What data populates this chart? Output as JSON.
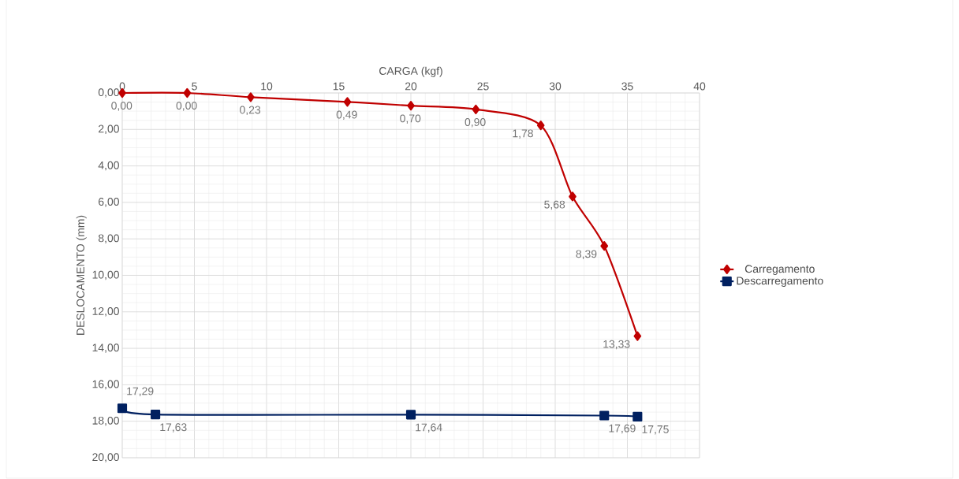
{
  "chart_data": {
    "type": "line",
    "xlabel": "CARGA (kgf)",
    "ylabel": "DESLOCAMENTO (mm)",
    "xlim": [
      0,
      40
    ],
    "xticks": [
      0,
      5,
      10,
      15,
      20,
      25,
      30,
      35,
      40
    ],
    "ylim": [
      20,
      0
    ],
    "yticks": [
      {
        "value": 0,
        "label": "0,00"
      },
      {
        "value": 2,
        "label": "2,00"
      },
      {
        "value": 4,
        "label": "4,00"
      },
      {
        "value": 6,
        "label": "6,00"
      },
      {
        "value": 8,
        "label": "8,00"
      },
      {
        "value": 10,
        "label": "10,00"
      },
      {
        "value": 12,
        "label": "12,00"
      },
      {
        "value": 14,
        "label": "14,00"
      },
      {
        "value": 16,
        "label": "16,00"
      },
      {
        "value": 18,
        "label": "18,00"
      },
      {
        "value": 20,
        "label": "20,00"
      }
    ],
    "grid": true,
    "legend": "right",
    "series": [
      {
        "name": "Carregamento",
        "color": "#c00000",
        "marker": "diamond",
        "x": [
          0,
          4.5,
          8.9,
          15.6,
          20.0,
          24.5,
          29.0,
          31.2,
          33.4,
          35.7
        ],
        "values": [
          0,
          0,
          0.23,
          0.49,
          0.7,
          0.9,
          1.78,
          5.68,
          8.39,
          13.33
        ],
        "value_labels": [
          "0,00",
          "0,00",
          "0,23",
          "0,49",
          "0,70",
          "0,90",
          "1,78",
          "5,68",
          "8,39",
          "13,33"
        ]
      },
      {
        "name": "Descarregamento",
        "color": "#002060",
        "marker": "square",
        "x": [
          0,
          2.3,
          20.0,
          33.4,
          35.7
        ],
        "values": [
          17.29,
          17.63,
          17.64,
          17.69,
          17.75
        ],
        "value_labels": [
          "17,29",
          "17,63",
          "17,64",
          "17,69",
          "17,75"
        ]
      }
    ]
  }
}
